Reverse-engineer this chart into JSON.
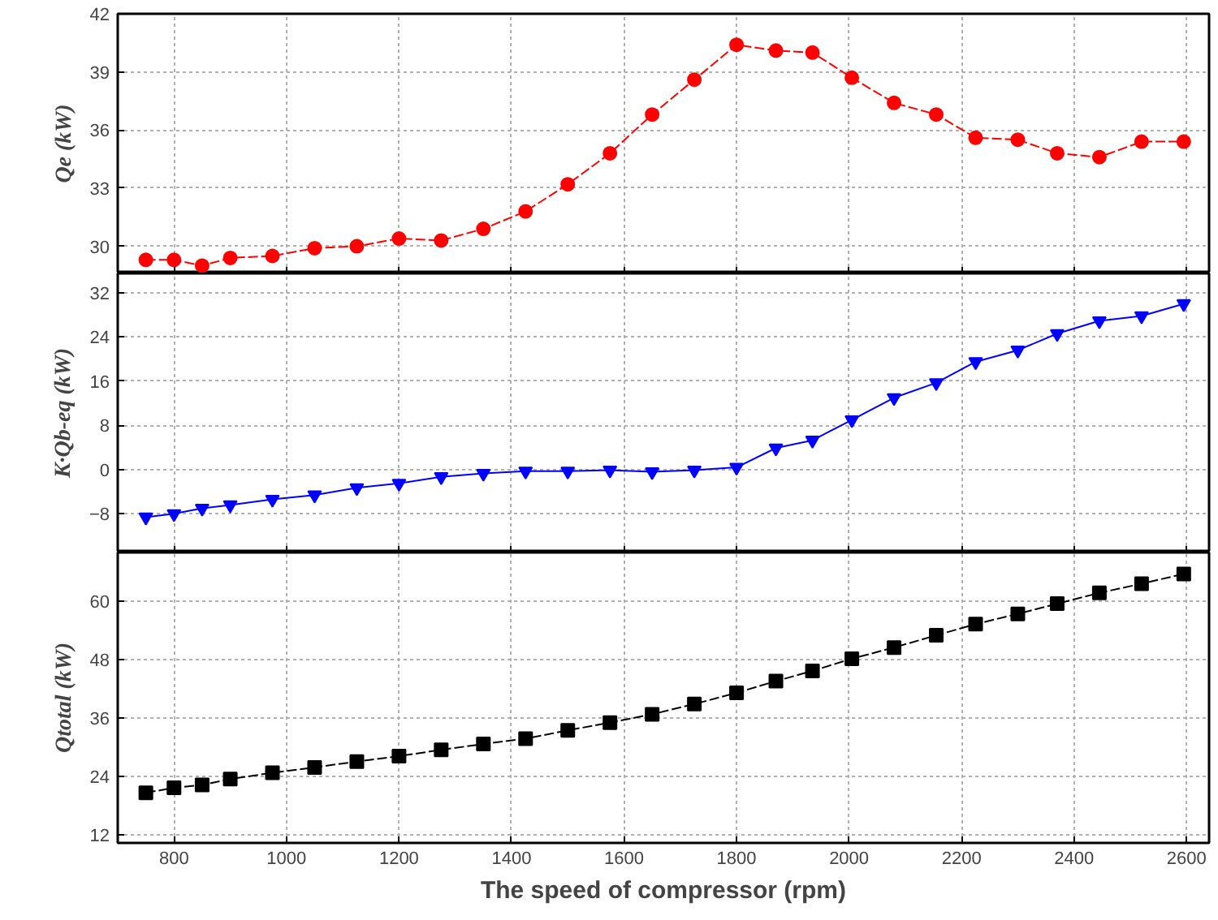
{
  "chart_data": [
    {
      "type": "line",
      "ylabel": "Qe (kW)",
      "x": [
        750,
        800,
        850,
        900,
        975,
        1050,
        1125,
        1200,
        1275,
        1350,
        1425,
        1500,
        1575,
        1650,
        1725,
        1800,
        1870,
        1935,
        2005,
        2080,
        2155,
        2225,
        2300,
        2370,
        2445,
        2520,
        2595
      ],
      "series": [
        {
          "color": "#ff0000",
          "values": [
            29.3,
            29.3,
            29.0,
            29.4,
            29.5,
            29.9,
            30.0,
            30.4,
            30.3,
            30.9,
            31.8,
            33.2,
            34.8,
            36.8,
            38.6,
            40.4,
            40.1,
            40.0,
            38.7,
            37.4,
            36.8,
            35.6,
            35.5,
            34.8,
            34.6,
            35.4,
            35.4
          ]
        }
      ],
      "xlim": [
        700,
        2640
      ],
      "xticks": [
        800,
        1000,
        1200,
        1400,
        1600,
        1800,
        2000,
        2200,
        2400,
        2600
      ],
      "ylim": [
        28.6,
        42
      ],
      "yticks": [
        30,
        33,
        36,
        39,
        42
      ],
      "grid": true,
      "marker": "circle",
      "line_style": "dashed",
      "tick_labels": "y"
    },
    {
      "type": "line",
      "ylabel": "K·Qb-eq (kW)",
      "x": [
        750,
        800,
        850,
        900,
        975,
        1050,
        1125,
        1200,
        1275,
        1350,
        1425,
        1500,
        1575,
        1650,
        1725,
        1800,
        1870,
        1935,
        2005,
        2080,
        2155,
        2225,
        2300,
        2370,
        2445,
        2520,
        2595
      ],
      "series": [
        {
          "color": "#0000ff",
          "values": [
            -8.6,
            -8.0,
            -7.0,
            -6.4,
            -5.4,
            -4.6,
            -3.3,
            -2.5,
            -1.3,
            -0.7,
            -0.3,
            -0.3,
            -0.1,
            -0.4,
            -0.1,
            0.4,
            3.9,
            5.3,
            9.0,
            13.0,
            15.7,
            19.5,
            21.6,
            24.6,
            26.9,
            27.8,
            30.0
          ]
        }
      ],
      "xlim": [
        700,
        2640
      ],
      "xticks": [
        800,
        1000,
        1200,
        1400,
        1600,
        1800,
        2000,
        2200,
        2400,
        2600
      ],
      "ylim": [
        -15,
        35.5
      ],
      "yticks": [
        -8,
        0,
        8,
        16,
        24,
        32
      ],
      "grid": true,
      "marker": "triangle",
      "line_style": "solid",
      "tick_labels": "y"
    },
    {
      "type": "line",
      "xlabel": "The speed of compressor (rpm)",
      "ylabel": "Qtotal (kW)",
      "x": [
        750,
        800,
        850,
        900,
        975,
        1050,
        1125,
        1200,
        1275,
        1350,
        1425,
        1500,
        1575,
        1650,
        1725,
        1800,
        1870,
        1935,
        2005,
        2080,
        2155,
        2225,
        2300,
        2370,
        2445,
        2520,
        2595
      ],
      "series": [
        {
          "color": "#000000",
          "values": [
            20.7,
            21.7,
            22.3,
            23.5,
            24.8,
            25.9,
            27.1,
            28.2,
            29.5,
            30.7,
            31.8,
            33.5,
            35.1,
            36.8,
            38.9,
            41.2,
            43.6,
            45.7,
            48.2,
            50.5,
            53.0,
            55.3,
            57.4,
            59.5,
            61.7,
            63.6,
            65.6
          ]
        }
      ],
      "xlim": [
        700,
        2640
      ],
      "xticks": [
        800,
        1000,
        1200,
        1400,
        1600,
        1800,
        2000,
        2200,
        2400,
        2600
      ],
      "ylim": [
        10.4,
        70
      ],
      "yticks": [
        12,
        24,
        36,
        48,
        60
      ],
      "grid": true,
      "marker": "square",
      "line_style": "dashed"
    }
  ]
}
